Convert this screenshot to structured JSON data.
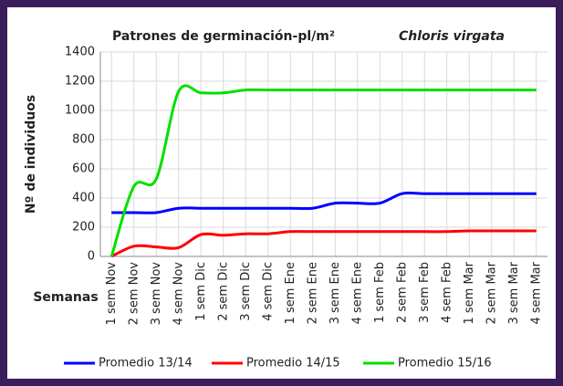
{
  "chart_data": {
    "type": "line",
    "title": "Patrones de germinación-pl/m²",
    "subtitle": "Chloris virgata",
    "y_label": "Nº de individuos",
    "x_label": "Semanas",
    "categories": [
      "1 sem Nov",
      "2 sem Nov",
      "3 sem Nov",
      "4 sem Nov",
      "1 sem Dic",
      "2 sem Dic",
      "3 sem Dic",
      "4 sem Dic",
      "1 sem Ene",
      "2 sem Ene",
      "3 sem Ene",
      "4 sem Ene",
      "1 sem Feb",
      "2 sem Feb",
      "3 sem Feb",
      "4 sem Feb",
      "1 sem Mar",
      "2 sem Mar",
      "3 sem Mar",
      "4 sem Mar"
    ],
    "series": [
      {
        "name": "Promedio 13/14",
        "color": "#0000ff",
        "values": [
          300,
          300,
          300,
          330,
          330,
          330,
          330,
          330,
          330,
          330,
          365,
          365,
          365,
          430,
          430,
          430,
          430,
          430,
          430,
          430
        ]
      },
      {
        "name": "Promedio 14/15",
        "color": "#ff0000",
        "values": [
          0,
          70,
          65,
          60,
          150,
          145,
          155,
          155,
          170,
          170,
          170,
          170,
          170,
          170,
          170,
          170,
          175,
          175,
          175,
          175
        ]
      },
      {
        "name": "Promedio 15/16",
        "color": "#00e000",
        "values": [
          0,
          480,
          530,
          1130,
          1120,
          1120,
          1140,
          1140,
          1140,
          1140,
          1140,
          1140,
          1140,
          1140,
          1140,
          1140,
          1140,
          1140,
          1140,
          1140
        ]
      }
    ],
    "ylim": [
      0,
      1400
    ],
    "yticks": [
      0,
      200,
      400,
      600,
      800,
      1000,
      1200,
      1400
    ],
    "grid": true,
    "legend": "bottom"
  }
}
